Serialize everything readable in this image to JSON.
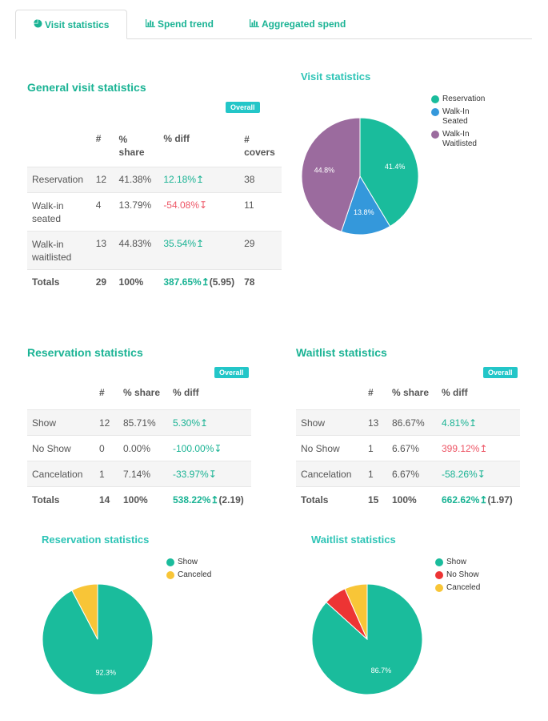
{
  "tabs": [
    {
      "label": "Visit statistics",
      "icon": "pie-chart-icon"
    },
    {
      "label": "Spend trend",
      "icon": "bar-chart-icon"
    },
    {
      "label": "Aggregated spend",
      "icon": "bar-chart-icon"
    }
  ],
  "general": {
    "title": "General visit statistics",
    "badge": "Overall",
    "headers": [
      "#",
      "% share",
      "% diff",
      "# covers"
    ],
    "rows": [
      {
        "label": "Reservation",
        "count": "12",
        "share": "41.38%",
        "diff": "12.18%",
        "dir": "up",
        "covers": "38"
      },
      {
        "label": "Walk-in seated",
        "count": "4",
        "share": "13.79%",
        "diff": "-54.08%",
        "dir": "down",
        "covers": "11"
      },
      {
        "label": "Walk-in waitlisted",
        "count": "13",
        "share": "44.83%",
        "diff": "35.54%",
        "dir": "up",
        "covers": "29"
      }
    ],
    "totals": {
      "label": "Totals",
      "count": "29",
      "share": "100%",
      "diff": "387.65%",
      "extra": "(5.95)",
      "covers": "78"
    }
  },
  "visit_chart": {
    "title": "Visit statistics",
    "legend": [
      "Reservation",
      "Walk-In Seated",
      "Walk-In Waitlisted"
    ],
    "labels": [
      "41.4%",
      "13.8%",
      "44.8%"
    ]
  },
  "reservation": {
    "title": "Reservation statistics",
    "badge": "Overall",
    "headers": [
      "#",
      "% share",
      "% diff"
    ],
    "rows": [
      {
        "label": "Show",
        "count": "12",
        "share": "85.71%",
        "diff": "5.30%",
        "dir": "up",
        "color": "up"
      },
      {
        "label": "No Show",
        "count": "0",
        "share": "0.00%",
        "diff": "-100.00%",
        "dir": "down",
        "color": "up"
      },
      {
        "label": "Cancelation",
        "count": "1",
        "share": "7.14%",
        "diff": "-33.97%",
        "dir": "down",
        "color": "up"
      }
    ],
    "totals": {
      "label": "Totals",
      "count": "14",
      "share": "100%",
      "diff": "538.22%",
      "extra": "(2.19)"
    }
  },
  "waitlist": {
    "title": "Waitlist statistics",
    "badge": "Overall",
    "headers": [
      "#",
      "% share",
      "% diff"
    ],
    "rows": [
      {
        "label": "Show",
        "count": "13",
        "share": "86.67%",
        "diff": "4.81%",
        "dir": "up",
        "color": "up"
      },
      {
        "label": "No Show",
        "count": "1",
        "share": "6.67%",
        "diff": "399.12%",
        "dir": "up",
        "color": "down"
      },
      {
        "label": "Cancelation",
        "count": "1",
        "share": "6.67%",
        "diff": "-58.26%",
        "dir": "down",
        "color": "up"
      }
    ],
    "totals": {
      "label": "Totals",
      "count": "15",
      "share": "100%",
      "diff": "662.62%",
      "extra": "(1.97)"
    }
  },
  "reservation_chart": {
    "title": "Reservation statistics",
    "legend": [
      "Show",
      "Canceled"
    ],
    "labels": [
      "92.3%"
    ]
  },
  "waitlist_chart": {
    "title": "Waitlist statistics",
    "legend": [
      "Show",
      "No Show",
      "Canceled"
    ],
    "labels": [
      "86.7%"
    ]
  },
  "chart_data": [
    {
      "type": "pie",
      "title": "Visit statistics",
      "categories": [
        "Reservation",
        "Walk-In Seated",
        "Walk-In Waitlisted"
      ],
      "values": [
        41.4,
        13.8,
        44.8
      ],
      "colors": [
        "#1abc9c",
        "#3498db",
        "#9b6b9e"
      ]
    },
    {
      "type": "pie",
      "title": "Reservation statistics",
      "categories": [
        "Show",
        "Canceled"
      ],
      "values": [
        92.3,
        7.7
      ],
      "colors": [
        "#1abc9c",
        "#f8c537"
      ]
    },
    {
      "type": "pie",
      "title": "Waitlist statistics",
      "categories": [
        "Show",
        "No Show",
        "Canceled"
      ],
      "values": [
        86.7,
        6.65,
        6.65
      ],
      "colors": [
        "#1abc9c",
        "#ed3434",
        "#f8c537"
      ]
    }
  ],
  "icons": {
    "up_arrow": "↥",
    "down_arrow": "↧"
  },
  "colors": {
    "accent": "#1ab394",
    "badge": "#23c6c8",
    "negative": "#ed5565"
  }
}
